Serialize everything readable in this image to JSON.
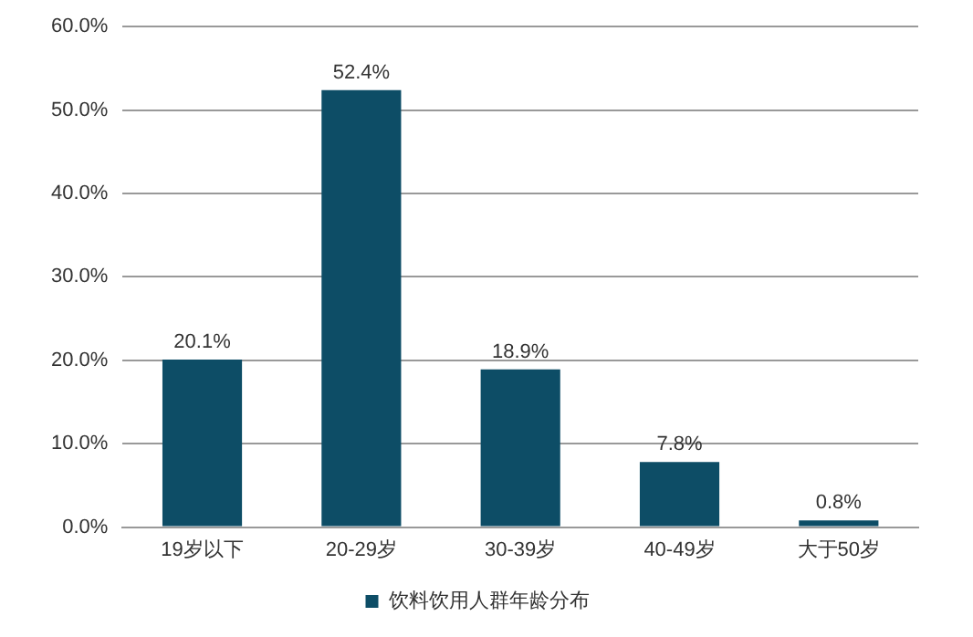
{
  "chart_data": {
    "type": "bar",
    "categories": [
      "19岁以下",
      "20-29岁",
      "30-39岁",
      "40-49岁",
      "大于50岁"
    ],
    "series": [
      {
        "name": "饮料饮用人群年龄分布",
        "color": "#0d4d66",
        "values": [
          20.1,
          52.4,
          18.9,
          7.8,
          0.8
        ],
        "value_labels": [
          "20.1%",
          "52.4%",
          "18.9%",
          "7.8%",
          "0.8%"
        ]
      }
    ],
    "ylim": [
      0,
      60
    ],
    "yticks": [
      {
        "value": 0,
        "label": "0.0%"
      },
      {
        "value": 10,
        "label": "10.0%"
      },
      {
        "value": 20,
        "label": "20.0%"
      },
      {
        "value": 30,
        "label": "30.0%"
      },
      {
        "value": 40,
        "label": "40.0%"
      },
      {
        "value": 50,
        "label": "50.0%"
      },
      {
        "value": 60,
        "label": "60.0%"
      }
    ],
    "grid": "y",
    "legend": "bottom"
  }
}
